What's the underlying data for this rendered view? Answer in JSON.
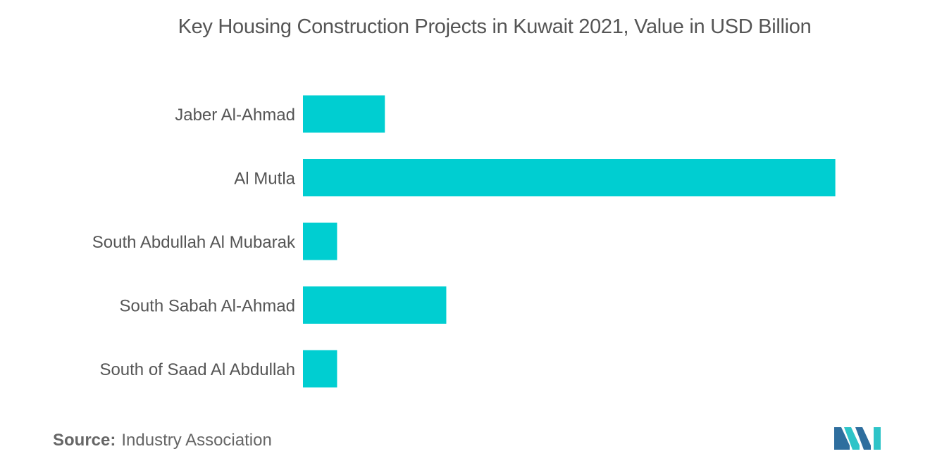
{
  "title": "Key Housing Construction Projects in Kuwait 2021, Value in USD Billion",
  "source": {
    "label": "Source:",
    "text": "Industry Association"
  },
  "colors": {
    "bar": "#00CED1",
    "text": "#555555",
    "logo_dark": "#2E6E9E",
    "logo_light": "#2EC4C8"
  },
  "chart_data": {
    "type": "bar",
    "orientation": "horizontal",
    "title": "Key Housing Construction Projects in Kuwait 2021, Value in USD Billion",
    "categories": [
      "Jaber Al-Ahmad",
      "Al Mutla",
      "South Abdullah Al Mubarak",
      "South Sabah Al-Ahmad",
      "South of Saad Al Abdullah"
    ],
    "values": [
      1.2,
      7.8,
      0.5,
      2.1,
      0.5
    ],
    "xlim": [
      0,
      8
    ],
    "xlabel": "",
    "ylabel": "",
    "grid": false,
    "legend": "none"
  }
}
